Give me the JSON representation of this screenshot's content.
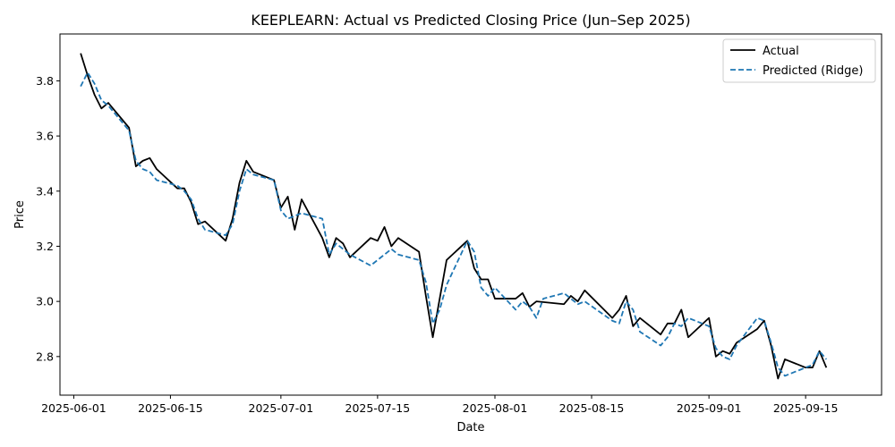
{
  "chart_data": {
    "type": "line",
    "title": "KEEPLEARN: Actual vs Predicted Closing Price (Jun–Sep 2025)",
    "xlabel": "Date",
    "ylabel": "Price",
    "x_range": [
      "2025-05-30",
      "2025-09-26"
    ],
    "ylim": [
      2.66,
      3.97
    ],
    "x_ticks": [
      "2025-06-01",
      "2025-06-15",
      "2025-07-01",
      "2025-07-15",
      "2025-08-01",
      "2025-08-15",
      "2025-09-01",
      "2025-09-15"
    ],
    "y_ticks": [
      2.8,
      3.0,
      3.2,
      3.4,
      3.6,
      3.8
    ],
    "grid": false,
    "legend_position": "top-right",
    "series": [
      {
        "name": "Actual",
        "color": "#000000",
        "style": "solid",
        "points": [
          [
            "2025-06-02",
            3.9
          ],
          [
            "2025-06-03",
            3.82
          ],
          [
            "2025-06-04",
            3.75
          ],
          [
            "2025-06-05",
            3.7
          ],
          [
            "2025-06-06",
            3.72
          ],
          [
            "2025-06-09",
            3.63
          ],
          [
            "2025-06-10",
            3.49
          ],
          [
            "2025-06-11",
            3.51
          ],
          [
            "2025-06-12",
            3.52
          ],
          [
            "2025-06-13",
            3.48
          ],
          [
            "2025-06-16",
            3.41
          ],
          [
            "2025-06-17",
            3.41
          ],
          [
            "2025-06-18",
            3.36
          ],
          [
            "2025-06-19",
            3.28
          ],
          [
            "2025-06-20",
            3.29
          ],
          [
            "2025-06-23",
            3.22
          ],
          [
            "2025-06-24",
            3.3
          ],
          [
            "2025-06-25",
            3.43
          ],
          [
            "2025-06-26",
            3.51
          ],
          [
            "2025-06-27",
            3.47
          ],
          [
            "2025-06-30",
            3.44
          ],
          [
            "2025-07-01",
            3.34
          ],
          [
            "2025-07-02",
            3.38
          ],
          [
            "2025-07-03",
            3.26
          ],
          [
            "2025-07-04",
            3.37
          ],
          [
            "2025-07-07",
            3.23
          ],
          [
            "2025-07-08",
            3.16
          ],
          [
            "2025-07-09",
            3.23
          ],
          [
            "2025-07-10",
            3.21
          ],
          [
            "2025-07-11",
            3.16
          ],
          [
            "2025-07-14",
            3.23
          ],
          [
            "2025-07-15",
            3.22
          ],
          [
            "2025-07-16",
            3.27
          ],
          [
            "2025-07-17",
            3.2
          ],
          [
            "2025-07-18",
            3.23
          ],
          [
            "2025-07-21",
            3.18
          ],
          [
            "2025-07-22",
            3.02
          ],
          [
            "2025-07-23",
            2.87
          ],
          [
            "2025-07-24",
            3.01
          ],
          [
            "2025-07-25",
            3.15
          ],
          [
            "2025-07-28",
            3.22
          ],
          [
            "2025-07-29",
            3.12
          ],
          [
            "2025-07-30",
            3.08
          ],
          [
            "2025-07-31",
            3.08
          ],
          [
            "2025-08-01",
            3.01
          ],
          [
            "2025-08-04",
            3.01
          ],
          [
            "2025-08-05",
            3.03
          ],
          [
            "2025-08-06",
            2.98
          ],
          [
            "2025-08-07",
            3.0
          ],
          [
            "2025-08-11",
            2.99
          ],
          [
            "2025-08-12",
            3.02
          ],
          [
            "2025-08-13",
            3.0
          ],
          [
            "2025-08-14",
            3.04
          ],
          [
            "2025-08-18",
            2.94
          ],
          [
            "2025-08-19",
            2.97
          ],
          [
            "2025-08-20",
            3.02
          ],
          [
            "2025-08-21",
            2.91
          ],
          [
            "2025-08-22",
            2.94
          ],
          [
            "2025-08-25",
            2.88
          ],
          [
            "2025-08-26",
            2.92
          ],
          [
            "2025-08-27",
            2.92
          ],
          [
            "2025-08-28",
            2.97
          ],
          [
            "2025-08-29",
            2.87
          ],
          [
            "2025-09-01",
            2.94
          ],
          [
            "2025-09-02",
            2.8
          ],
          [
            "2025-09-03",
            2.82
          ],
          [
            "2025-09-04",
            2.81
          ],
          [
            "2025-09-05",
            2.85
          ],
          [
            "2025-09-08",
            2.9
          ],
          [
            "2025-09-09",
            2.93
          ],
          [
            "2025-09-10",
            2.84
          ],
          [
            "2025-09-11",
            2.72
          ],
          [
            "2025-09-12",
            2.79
          ],
          [
            "2025-09-15",
            2.76
          ],
          [
            "2025-09-16",
            2.76
          ],
          [
            "2025-09-17",
            2.82
          ],
          [
            "2025-09-18",
            2.76
          ]
        ]
      },
      {
        "name": "Predicted (Ridge)",
        "color": "#1f77b4",
        "style": "dashed",
        "points": [
          [
            "2025-06-02",
            3.78
          ],
          [
            "2025-06-03",
            3.83
          ],
          [
            "2025-06-04",
            3.79
          ],
          [
            "2025-06-05",
            3.73
          ],
          [
            "2025-06-06",
            3.71
          ],
          [
            "2025-06-09",
            3.62
          ],
          [
            "2025-06-10",
            3.51
          ],
          [
            "2025-06-11",
            3.48
          ],
          [
            "2025-06-12",
            3.47
          ],
          [
            "2025-06-13",
            3.44
          ],
          [
            "2025-06-16",
            3.42
          ],
          [
            "2025-06-17",
            3.4
          ],
          [
            "2025-06-18",
            3.37
          ],
          [
            "2025-06-19",
            3.3
          ],
          [
            "2025-06-20",
            3.26
          ],
          [
            "2025-06-23",
            3.24
          ],
          [
            "2025-06-24",
            3.28
          ],
          [
            "2025-06-25",
            3.4
          ],
          [
            "2025-06-26",
            3.48
          ],
          [
            "2025-06-27",
            3.46
          ],
          [
            "2025-06-30",
            3.44
          ],
          [
            "2025-07-01",
            3.33
          ],
          [
            "2025-07-02",
            3.3
          ],
          [
            "2025-07-03",
            3.31
          ],
          [
            "2025-07-04",
            3.32
          ],
          [
            "2025-07-07",
            3.3
          ],
          [
            "2025-07-08",
            3.17
          ],
          [
            "2025-07-09",
            3.21
          ],
          [
            "2025-07-10",
            3.19
          ],
          [
            "2025-07-11",
            3.17
          ],
          [
            "2025-07-14",
            3.13
          ],
          [
            "2025-07-15",
            3.15
          ],
          [
            "2025-07-16",
            3.17
          ],
          [
            "2025-07-17",
            3.19
          ],
          [
            "2025-07-18",
            3.17
          ],
          [
            "2025-07-21",
            3.15
          ],
          [
            "2025-07-22",
            3.07
          ],
          [
            "2025-07-23",
            2.92
          ],
          [
            "2025-07-24",
            2.97
          ],
          [
            "2025-07-25",
            3.06
          ],
          [
            "2025-07-28",
            3.22
          ],
          [
            "2025-07-29",
            3.18
          ],
          [
            "2025-07-30",
            3.05
          ],
          [
            "2025-07-31",
            3.02
          ],
          [
            "2025-08-01",
            3.05
          ],
          [
            "2025-08-04",
            2.97
          ],
          [
            "2025-08-05",
            3.0
          ],
          [
            "2025-08-06",
            2.98
          ],
          [
            "2025-08-07",
            2.94
          ],
          [
            "2025-08-08",
            3.01
          ],
          [
            "2025-08-11",
            3.03
          ],
          [
            "2025-08-12",
            3.01
          ],
          [
            "2025-08-13",
            2.99
          ],
          [
            "2025-08-14",
            3.0
          ],
          [
            "2025-08-18",
            2.93
          ],
          [
            "2025-08-19",
            2.92
          ],
          [
            "2025-08-20",
            3.0
          ],
          [
            "2025-08-21",
            2.97
          ],
          [
            "2025-08-22",
            2.89
          ],
          [
            "2025-08-25",
            2.84
          ],
          [
            "2025-08-26",
            2.87
          ],
          [
            "2025-08-27",
            2.92
          ],
          [
            "2025-08-28",
            2.91
          ],
          [
            "2025-08-29",
            2.94
          ],
          [
            "2025-09-01",
            2.91
          ],
          [
            "2025-09-02",
            2.83
          ],
          [
            "2025-09-03",
            2.8
          ],
          [
            "2025-09-04",
            2.79
          ],
          [
            "2025-09-05",
            2.84
          ],
          [
            "2025-09-08",
            2.94
          ],
          [
            "2025-09-09",
            2.93
          ],
          [
            "2025-09-10",
            2.85
          ],
          [
            "2025-09-11",
            2.76
          ],
          [
            "2025-09-12",
            2.73
          ],
          [
            "2025-09-15",
            2.76
          ],
          [
            "2025-09-16",
            2.77
          ],
          [
            "2025-09-17",
            2.82
          ],
          [
            "2025-09-18",
            2.79
          ]
        ]
      }
    ]
  }
}
